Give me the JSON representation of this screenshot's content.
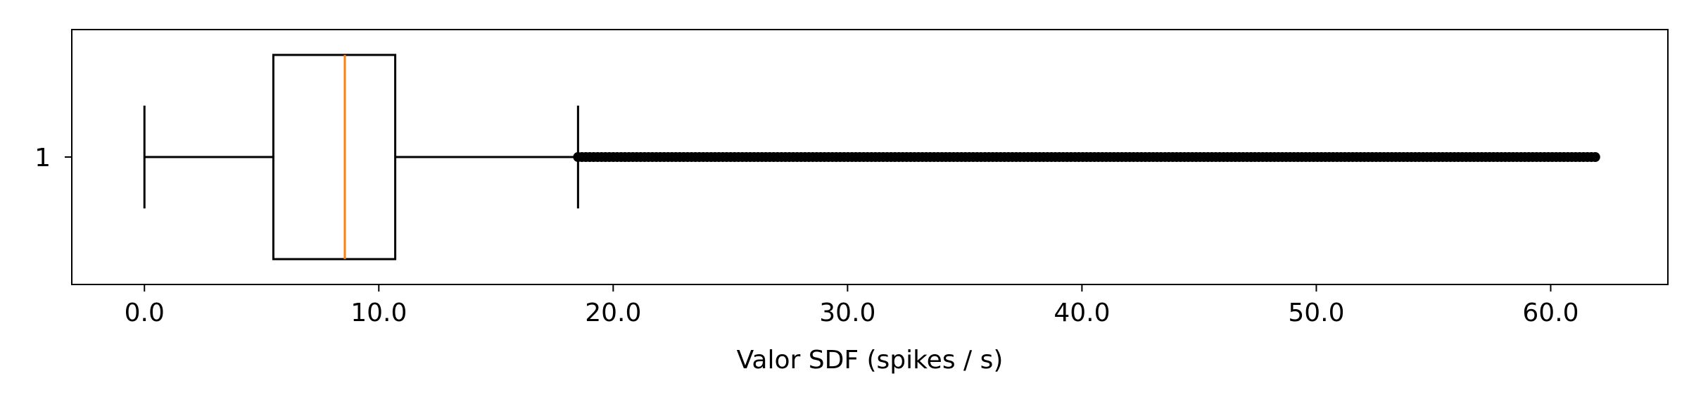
{
  "chart_data": {
    "type": "boxplot",
    "orientation": "horizontal",
    "title": "",
    "xlabel": "Valor SDF (spikes / s)",
    "ylabel": "",
    "xlim": [
      -3.1,
      65.0
    ],
    "x_ticks": [
      0,
      10,
      20,
      30,
      40,
      50,
      60
    ],
    "x_tick_labels": [
      "0.0",
      "10.0",
      "20.0",
      "30.0",
      "40.0",
      "50.0",
      "60.0"
    ],
    "categories": [
      "1"
    ],
    "series": [
      {
        "whisker_low": 0.0,
        "q1": 5.5,
        "median": 8.55,
        "q3": 10.7,
        "whisker_high": 18.5,
        "outliers_range": [
          18.5,
          61.9
        ]
      }
    ],
    "grid": false,
    "legend": "none",
    "colors": {
      "box": "#000000",
      "median": "#ff7f0e",
      "outliers": "#000000",
      "axes": "#000000"
    }
  }
}
